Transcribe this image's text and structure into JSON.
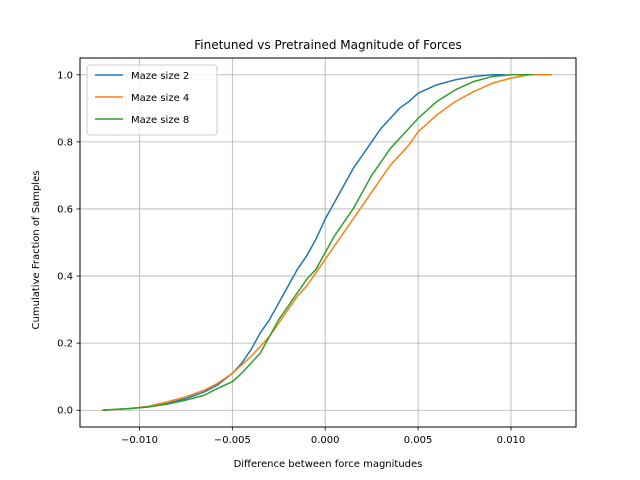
{
  "chart_data": {
    "type": "line",
    "title": "Finetuned vs Pretrained Magnitude of Forces",
    "xlabel": "Difference between force magnitudes",
    "ylabel": "Cumulative Fraction of Samples",
    "xlim": [
      -0.0132,
      0.0135
    ],
    "ylim": [
      -0.05,
      1.05
    ],
    "xticks": [
      -0.01,
      -0.005,
      0.0,
      0.005,
      0.01
    ],
    "xtick_labels": [
      "−0.010",
      "−0.005",
      "0.000",
      "0.005",
      "0.010"
    ],
    "yticks": [
      0.0,
      0.2,
      0.4,
      0.6,
      0.8,
      1.0
    ],
    "ytick_labels": [
      "0.0",
      "0.2",
      "0.4",
      "0.6",
      "0.8",
      "1.0"
    ],
    "grid": true,
    "legend_position": "top-left",
    "series": [
      {
        "name": "Maze size 2",
        "color": "#1f77b4",
        "x": [
          -0.012,
          -0.0105,
          -0.0095,
          -0.0085,
          -0.0075,
          -0.0065,
          -0.0058,
          -0.005,
          -0.0045,
          -0.004,
          -0.0035,
          -0.003,
          -0.0025,
          -0.002,
          -0.0015,
          -0.001,
          -0.0005,
          0.0,
          0.0005,
          0.001,
          0.0015,
          0.002,
          0.0025,
          0.003,
          0.0035,
          0.004,
          0.0045,
          0.005,
          0.006,
          0.007,
          0.008,
          0.009,
          0.0097
        ],
        "y": [
          0.0,
          0.005,
          0.01,
          0.02,
          0.035,
          0.055,
          0.075,
          0.11,
          0.14,
          0.18,
          0.23,
          0.27,
          0.32,
          0.37,
          0.42,
          0.46,
          0.51,
          0.57,
          0.62,
          0.67,
          0.72,
          0.76,
          0.8,
          0.84,
          0.87,
          0.9,
          0.92,
          0.945,
          0.97,
          0.985,
          0.995,
          1.0,
          1.0
        ]
      },
      {
        "name": "Maze size 4",
        "color": "#ff7f0e",
        "x": [
          -0.012,
          -0.0105,
          -0.0095,
          -0.0085,
          -0.0075,
          -0.0065,
          -0.0058,
          -0.005,
          -0.0045,
          -0.004,
          -0.0035,
          -0.003,
          -0.0025,
          -0.002,
          -0.0015,
          -0.001,
          -0.0005,
          0.0,
          0.0005,
          0.001,
          0.0015,
          0.002,
          0.0025,
          0.003,
          0.0035,
          0.004,
          0.0045,
          0.005,
          0.006,
          0.007,
          0.008,
          0.009,
          0.01,
          0.011,
          0.0122
        ],
        "y": [
          0.0,
          0.005,
          0.012,
          0.025,
          0.04,
          0.06,
          0.08,
          0.11,
          0.135,
          0.16,
          0.19,
          0.22,
          0.26,
          0.3,
          0.34,
          0.37,
          0.41,
          0.45,
          0.49,
          0.53,
          0.57,
          0.61,
          0.65,
          0.69,
          0.73,
          0.76,
          0.79,
          0.83,
          0.88,
          0.92,
          0.95,
          0.975,
          0.99,
          1.0,
          1.0
        ]
      },
      {
        "name": "Maze size 8",
        "color": "#2ca02c",
        "x": [
          -0.012,
          -0.0105,
          -0.0095,
          -0.0085,
          -0.0075,
          -0.0065,
          -0.0058,
          -0.005,
          -0.0045,
          -0.004,
          -0.0035,
          -0.003,
          -0.0025,
          -0.002,
          -0.0015,
          -0.001,
          -0.0005,
          0.0,
          0.0005,
          0.001,
          0.0015,
          0.002,
          0.0025,
          0.003,
          0.0035,
          0.004,
          0.0045,
          0.005,
          0.006,
          0.007,
          0.008,
          0.009,
          0.01,
          0.0112
        ],
        "y": [
          0.0,
          0.005,
          0.01,
          0.018,
          0.03,
          0.045,
          0.065,
          0.085,
          0.11,
          0.14,
          0.17,
          0.22,
          0.27,
          0.31,
          0.35,
          0.39,
          0.42,
          0.47,
          0.52,
          0.56,
          0.6,
          0.65,
          0.7,
          0.74,
          0.78,
          0.81,
          0.84,
          0.87,
          0.92,
          0.955,
          0.98,
          0.995,
          1.0,
          1.0
        ]
      }
    ]
  }
}
